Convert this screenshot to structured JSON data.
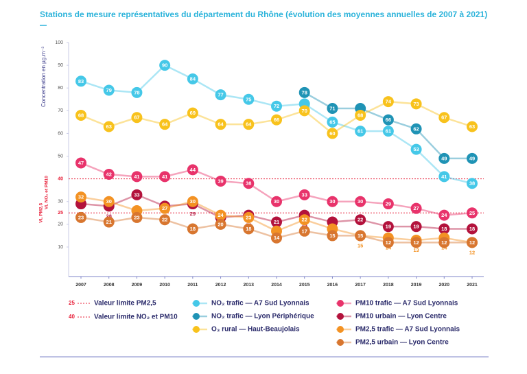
{
  "chart_data": {
    "type": "line",
    "title": "Stations de mesure représentatives du département du Rhône (évolution des moyennes annuelles de 2007 à 2021)",
    "y_label": "Concentration en µg.m⁻³",
    "categories": [
      "2007",
      "2008",
      "2009",
      "2010",
      "2011",
      "2012",
      "2013",
      "2014",
      "2015",
      "2016",
      "2017",
      "2018",
      "2019",
      "2020",
      "2021"
    ],
    "ylim": [
      -3,
      100
    ],
    "yticks": [
      10,
      20,
      30,
      50,
      60,
      70,
      80,
      90,
      100
    ],
    "grid": false,
    "reference_lines": [
      {
        "value": 25,
        "label": "Valeur limite PM2,5",
        "axis_label": "VL PM2,5",
        "color": "#e8203a"
      },
      {
        "value": 40,
        "label": "Valeur limite NO₂ et PM10",
        "axis_label": "VL NO₂ et PM10",
        "color": "#e8203a"
      }
    ],
    "series": [
      {
        "name": "NO₂ trafic — A7 Sud Lyonnais",
        "color": "#45c8e8",
        "values": [
          83,
          79,
          78,
          90,
          84,
          77,
          75,
          72,
          73,
          65,
          61,
          61,
          53,
          41,
          38
        ]
      },
      {
        "name": "NO₂ trafic — Lyon Périphérique",
        "color": "#1f93b5",
        "values": [
          null,
          null,
          null,
          null,
          null,
          null,
          null,
          null,
          78,
          71,
          71,
          66,
          62,
          49,
          49
        ]
      },
      {
        "name": "O₃ rural — Haut-Beaujolais",
        "color": "#f8c21c",
        "values": [
          68,
          63,
          67,
          64,
          69,
          64,
          64,
          66,
          70,
          60,
          68,
          74,
          73,
          67,
          63
        ]
      },
      {
        "name": "PM10 trafic — A7 Sud Lyonnais",
        "color": "#e8336b",
        "values": [
          47,
          42,
          41,
          41,
          44,
          39,
          38,
          30,
          33,
          30,
          30,
          29,
          27,
          24,
          25
        ]
      },
      {
        "name": "PM10 urbain — Lyon Centre",
        "color": "#b3123c",
        "values": [
          29,
          28,
          33,
          28,
          29,
          23,
          24,
          21,
          24,
          21,
          22,
          19,
          19,
          18,
          18
        ]
      },
      {
        "name": "PM2,5 trafic — A7 Sud Lyonnais",
        "color": "#f39223",
        "values": [
          32,
          30,
          26,
          27,
          30,
          24,
          23,
          17,
          22,
          18,
          15,
          14,
          13,
          14,
          12
        ]
      },
      {
        "name": "PM2,5 urbain — Lyon Centre",
        "color": "#d8762f",
        "values": [
          23,
          21,
          23,
          22,
          18,
          20,
          18,
          14,
          17,
          15,
          15,
          12,
          12,
          12,
          12
        ]
      }
    ]
  }
}
